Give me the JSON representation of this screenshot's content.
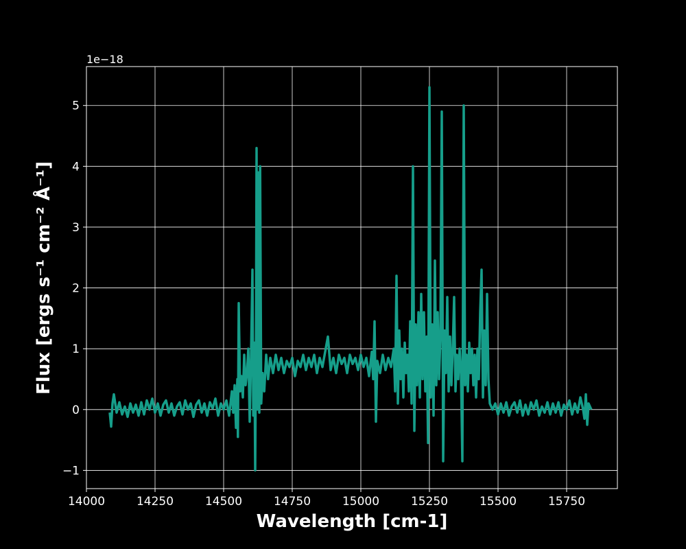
{
  "chart_data": {
    "type": "line",
    "xlabel": "Wavelength [cm-1]",
    "ylabel": "Flux [ergs s⁻¹ cm⁻² Å⁻¹]",
    "y_offset_label": "1e−18",
    "xlim": [
      14000,
      15935
    ],
    "ylim": [
      -1.3,
      5.64
    ],
    "xticks": [
      14000,
      14250,
      14500,
      14750,
      15000,
      15250,
      15500,
      15750
    ],
    "yticks": [
      {
        "value": -1,
        "label": "−1"
      },
      0,
      1,
      2,
      3,
      4,
      5
    ],
    "grid": true,
    "series": [
      {
        "color": "#169e8a",
        "x": [
          14085,
          14090,
          14095,
          14100,
          14110,
          14120,
          14130,
          14140,
          14150,
          14160,
          14170,
          14180,
          14190,
          14200,
          14210,
          14220,
          14230,
          14240,
          14250,
          14260,
          14270,
          14280,
          14290,
          14300,
          14310,
          14320,
          14330,
          14340,
          14350,
          14360,
          14370,
          14380,
          14390,
          14400,
          14410,
          14420,
          14430,
          14440,
          14450,
          14460,
          14470,
          14480,
          14490,
          14500,
          14510,
          14520,
          14530,
          14535,
          14540,
          14545,
          14550,
          14552,
          14555,
          14560,
          14565,
          14570,
          14575,
          14580,
          14585,
          14590,
          14595,
          14600,
          14605,
          14608,
          14612,
          14615,
          14618,
          14620,
          14623,
          14627,
          14630,
          14633,
          14637,
          14642,
          14648,
          14655,
          14662,
          14670,
          14680,
          14690,
          14700,
          14710,
          14720,
          14730,
          14740,
          14750,
          14760,
          14770,
          14780,
          14790,
          14800,
          14810,
          14820,
          14830,
          14840,
          14850,
          14860,
          14870,
          14880,
          14890,
          14900,
          14910,
          14920,
          14930,
          14940,
          14950,
          14960,
          14970,
          14980,
          14990,
          15000,
          15010,
          15020,
          15030,
          15040,
          15045,
          15050,
          15055,
          15060,
          15070,
          15080,
          15090,
          15100,
          15110,
          15120,
          15125,
          15130,
          15135,
          15140,
          15145,
          15150,
          15155,
          15160,
          15165,
          15170,
          15175,
          15180,
          15185,
          15190,
          15195,
          15200,
          15205,
          15210,
          15215,
          15220,
          15225,
          15230,
          15235,
          15240,
          15245,
          15250,
          15255,
          15260,
          15265,
          15270,
          15275,
          15280,
          15285,
          15290,
          15295,
          15300,
          15305,
          15310,
          15315,
          15320,
          15325,
          15330,
          15335,
          15340,
          15345,
          15350,
          15355,
          15360,
          15365,
          15370,
          15375,
          15380,
          15385,
          15390,
          15395,
          15400,
          15405,
          15410,
          15415,
          15420,
          15425,
          15430,
          15435,
          15440,
          15445,
          15450,
          15455,
          15460,
          15465,
          15470,
          15480,
          15490,
          15500,
          15510,
          15520,
          15530,
          15540,
          15550,
          15560,
          15570,
          15580,
          15590,
          15600,
          15610,
          15620,
          15630,
          15640,
          15650,
          15660,
          15670,
          15680,
          15690,
          15700,
          15710,
          15720,
          15730,
          15740,
          15750,
          15760,
          15770,
          15780,
          15790,
          15800,
          15810,
          15815,
          15820,
          15825,
          15830,
          15840
        ],
        "values": [
          -0.05,
          -0.28,
          0.1,
          0.25,
          -0.05,
          0.12,
          -0.08,
          0.05,
          -0.12,
          0.1,
          -0.05,
          0.08,
          -0.1,
          0.12,
          -0.08,
          0.15,
          0.0,
          0.18,
          -0.05,
          0.1,
          -0.1,
          0.08,
          0.15,
          -0.05,
          0.1,
          -0.1,
          0.05,
          0.12,
          -0.08,
          0.15,
          0.0,
          0.1,
          -0.12,
          0.08,
          0.15,
          -0.05,
          0.1,
          -0.1,
          0.12,
          0.02,
          0.18,
          -0.1,
          0.1,
          0.0,
          0.15,
          -0.1,
          0.3,
          -0.05,
          0.4,
          -0.3,
          0.5,
          -0.45,
          1.75,
          0.3,
          0.55,
          0.2,
          0.9,
          0.4,
          0.6,
          1.0,
          -0.2,
          0.9,
          2.3,
          -0.1,
          1.1,
          -1.0,
          1.2,
          4.3,
          0.0,
          3.9,
          -0.05,
          4.0,
          0.1,
          0.6,
          0.3,
          0.9,
          0.5,
          0.85,
          0.6,
          0.9,
          0.65,
          0.85,
          0.6,
          0.8,
          0.7,
          0.85,
          0.55,
          0.8,
          0.7,
          0.9,
          0.65,
          0.85,
          0.7,
          0.9,
          0.6,
          0.85,
          0.7,
          0.95,
          1.2,
          0.65,
          0.85,
          0.6,
          0.9,
          0.75,
          0.85,
          0.6,
          0.9,
          0.75,
          0.85,
          0.65,
          0.9,
          0.7,
          0.85,
          0.55,
          0.95,
          0.5,
          1.45,
          -0.2,
          0.8,
          0.6,
          0.9,
          0.65,
          0.85,
          0.7,
          1.0,
          0.3,
          2.2,
          0.1,
          1.3,
          0.5,
          1.0,
          0.2,
          1.1,
          0.6,
          0.9,
          0.3,
          1.45,
          0.1,
          4.0,
          -0.35,
          1.4,
          0.4,
          1.6,
          0.2,
          1.9,
          0.5,
          1.6,
          0.3,
          1.2,
          -0.55,
          5.3,
          0.2,
          1.4,
          -0.1,
          2.45,
          0.4,
          1.6,
          0.5,
          1.2,
          4.9,
          -0.85,
          1.3,
          0.6,
          1.85,
          0.3,
          1.2,
          0.4,
          1.0,
          1.85,
          0.3,
          0.9,
          0.5,
          1.0,
          0.6,
          -0.85,
          5.0,
          0.4,
          0.9,
          0.3,
          1.1,
          0.6,
          1.0,
          0.4,
          0.9,
          0.2,
          1.0,
          0.5,
          1.6,
          2.3,
          0.2,
          1.3,
          0.4,
          1.9,
          0.5,
          0.1,
          0.0,
          0.1,
          -0.08,
          0.1,
          -0.05,
          0.12,
          -0.1,
          0.05,
          0.12,
          -0.05,
          0.15,
          -0.1,
          0.08,
          -0.08,
          0.12,
          0.0,
          0.15,
          -0.1,
          0.05,
          -0.05,
          0.12,
          -0.08,
          0.1,
          -0.05,
          0.12,
          -0.1,
          0.08,
          0.0,
          0.15,
          -0.08,
          0.1,
          -0.05,
          0.2,
          0.0,
          -0.15,
          0.25,
          -0.25,
          0.1,
          0.0
        ]
      }
    ]
  }
}
